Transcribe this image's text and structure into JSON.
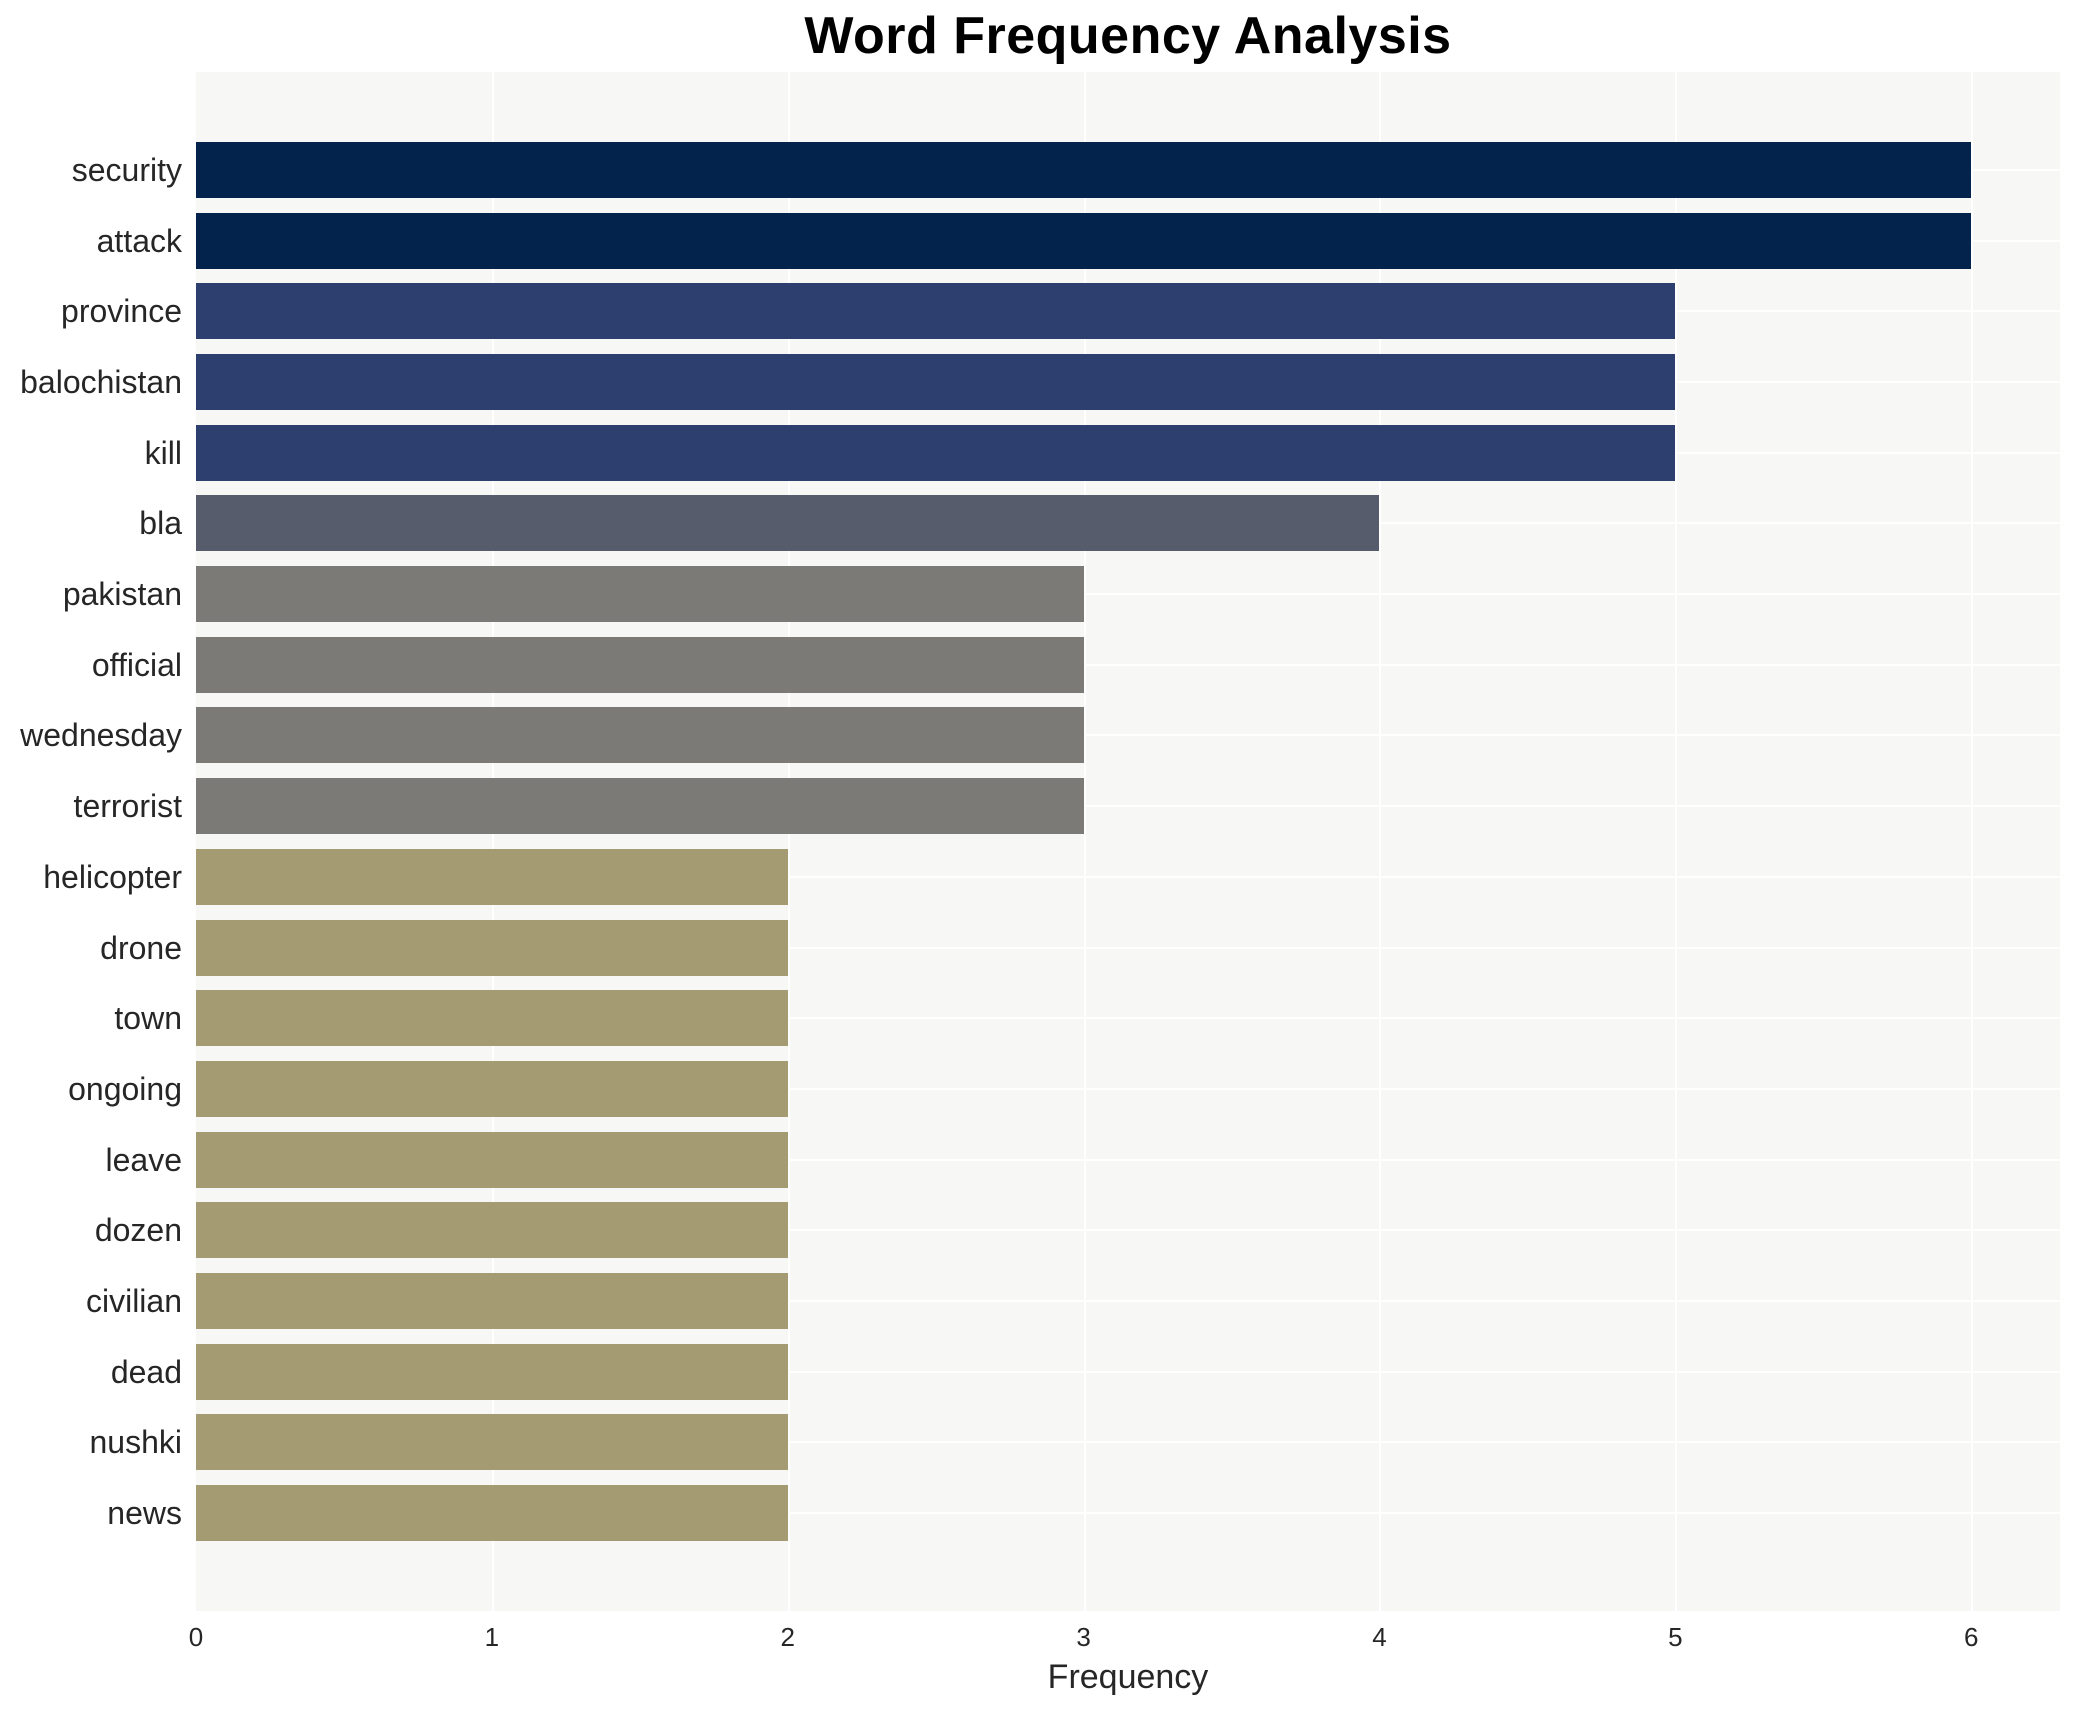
{
  "chart_data": {
    "type": "bar",
    "orientation": "horizontal",
    "title": "Word Frequency Analysis",
    "xlabel": "Frequency",
    "ylabel": "",
    "categories": [
      "security",
      "attack",
      "province",
      "balochistan",
      "kill",
      "bla",
      "pakistan",
      "official",
      "wednesday",
      "terrorist",
      "helicopter",
      "drone",
      "town",
      "ongoing",
      "leave",
      "dozen",
      "civilian",
      "dead",
      "nushki",
      "news"
    ],
    "values": [
      6,
      6,
      5,
      5,
      5,
      4,
      3,
      3,
      3,
      3,
      2,
      2,
      2,
      2,
      2,
      2,
      2,
      2,
      2,
      2
    ],
    "bar_colors": [
      "#03224c",
      "#03224c",
      "#2c3f6e",
      "#2c3f6e",
      "#2c3f6e",
      "#565c6c",
      "#7b7a76",
      "#7b7a76",
      "#7b7a76",
      "#7b7a76",
      "#a59b72",
      "#a59b72",
      "#a59b72",
      "#a59b72",
      "#a59b72",
      "#a59b72",
      "#a59b72",
      "#a59b72",
      "#a59b72",
      "#a59b72"
    ],
    "xticks": [
      "0",
      "1",
      "2",
      "3",
      "4",
      "5",
      "6"
    ],
    "xlim": [
      0,
      6.3
    ],
    "grid": true,
    "grid_color": "#ffffff",
    "plot_background": "#f7f7f6",
    "legend": "none"
  }
}
